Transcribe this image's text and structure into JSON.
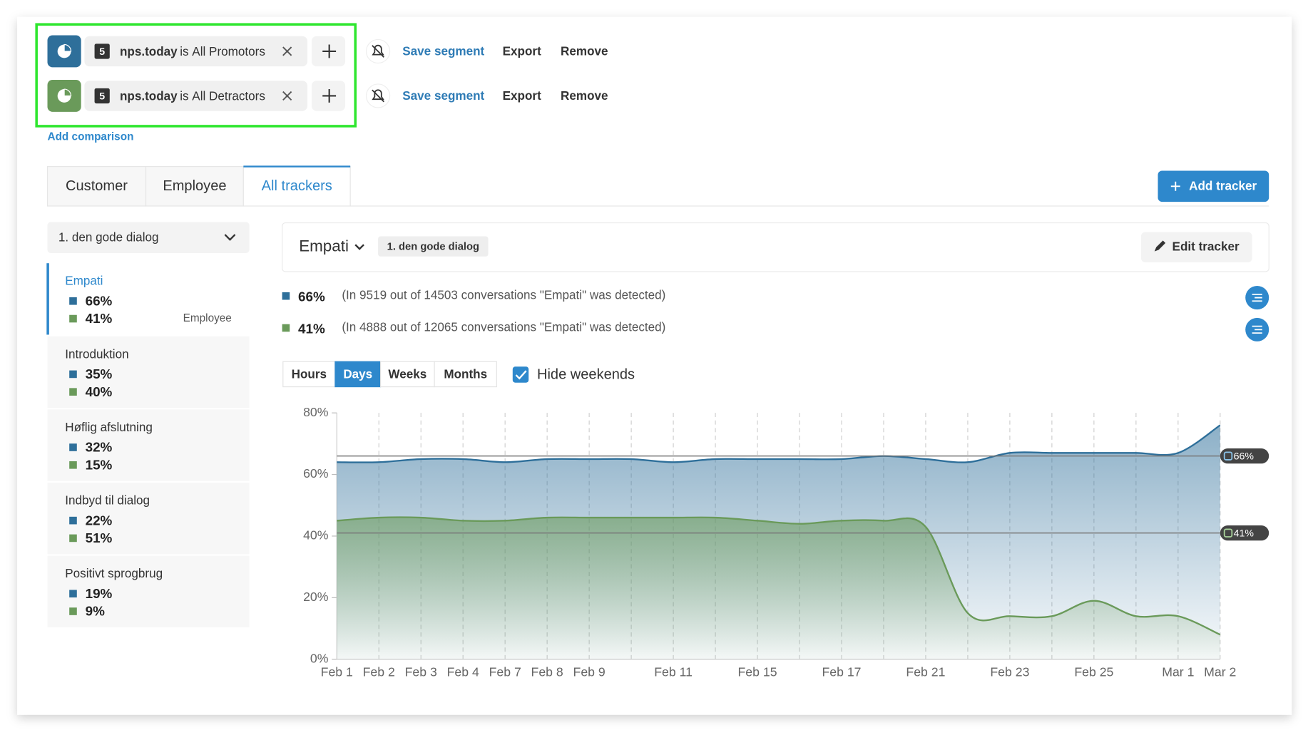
{
  "segments": [
    {
      "badge": "5",
      "field": "nps.today",
      "op": "is",
      "value": "All Promotors",
      "color": "#2e6f9a"
    },
    {
      "badge": "5",
      "field": "nps.today",
      "op": "is",
      "value": "All Detractors",
      "color": "#6a9a5a"
    }
  ],
  "segment_actions": [
    "Save segment",
    "Export",
    "Remove"
  ],
  "add_comparison": "Add comparison",
  "tabs": [
    "Customer",
    "Employee",
    "All trackers"
  ],
  "active_tab": 2,
  "add_tracker": "Add tracker",
  "tracker_select": "1. den gode dialog",
  "trackers": [
    {
      "name": "Empati",
      "values": [
        "66%",
        "41%"
      ],
      "note": "Employee"
    },
    {
      "name": "Introduktion",
      "values": [
        "35%",
        "40%"
      ]
    },
    {
      "name": "Høflig afslutning",
      "values": [
        "32%",
        "15%"
      ]
    },
    {
      "name": "Indbyd til dialog",
      "values": [
        "22%",
        "51%"
      ]
    },
    {
      "name": "Positivt sprogbrug",
      "values": [
        "19%",
        "9%"
      ]
    }
  ],
  "active_tracker": 0,
  "panel": {
    "tracker": "Empati",
    "tag": "1. den gode dialog",
    "edit": "Edit tracker",
    "stats": [
      {
        "pct": "66%",
        "text": "(In 9519 out of 14503 conversations \"Empati\" was detected)"
      },
      {
        "pct": "41%",
        "text": "(In 4888 out of 12065 conversations \"Empati\" was detected)"
      }
    ]
  },
  "granularity": [
    "Hours",
    "Days",
    "Weeks",
    "Months"
  ],
  "active_granularity": 1,
  "hide_weekends": "Hide weekends",
  "chart_data": {
    "type": "area",
    "categories": [
      "Feb 1",
      "Feb 2",
      "Feb 3",
      "Feb 4",
      "Feb 7",
      "Feb 8",
      "Feb 9",
      null,
      "Feb 11",
      null,
      "Feb 15",
      null,
      "Feb 17",
      null,
      "Feb 21",
      null,
      "Feb 23",
      null,
      "Feb 25",
      null,
      "Mar 1",
      "Mar 2"
    ],
    "series": [
      {
        "color": "#2e6f9a",
        "values": [
          64,
          64,
          65,
          65,
          64,
          65,
          65,
          65,
          64,
          65,
          65,
          65,
          65,
          66,
          65,
          64,
          67,
          67,
          67,
          67,
          67,
          76
        ]
      },
      {
        "color": "#6a9a5a",
        "values": [
          45,
          46,
          46,
          45,
          45,
          46,
          46,
          46,
          46,
          46,
          45,
          44,
          45,
          45,
          43,
          15,
          14,
          14,
          19,
          14,
          14,
          8
        ]
      }
    ],
    "reference_lines": [
      {
        "value": 66,
        "label": "66%",
        "color": "#2e6f9a"
      },
      {
        "value": 41,
        "label": "41%",
        "color": "#6a9a5a"
      }
    ],
    "ylim": [
      0,
      80
    ],
    "yticks": [
      {
        "value": 0,
        "label": "0%"
      },
      {
        "value": 20,
        "label": "20%"
      },
      {
        "value": 40,
        "label": "40%"
      },
      {
        "value": 60,
        "label": "60%"
      },
      {
        "value": 80,
        "label": "80%"
      }
    ],
    "grid": true
  }
}
